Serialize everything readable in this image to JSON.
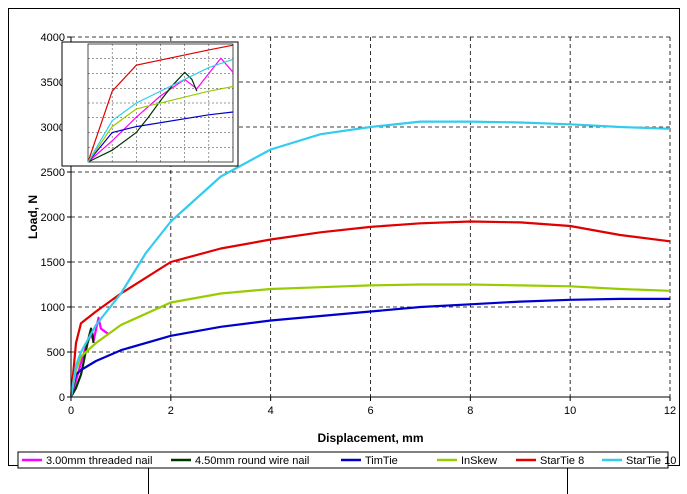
{
  "chart_data": {
    "type": "line",
    "title": "",
    "xlabel": "Displacement, mm",
    "ylabel": "Load, N",
    "xlim": [
      0,
      12
    ],
    "ylim": [
      0,
      4000
    ],
    "xticks": [
      "0",
      "2",
      "4",
      "6",
      "8",
      "10",
      "12"
    ],
    "yticks": [
      "0",
      "500",
      "1000",
      "1500",
      "2000",
      "2500",
      "3000",
      "3500",
      "4000"
    ],
    "grid": true,
    "legend_position": "bottom",
    "series": [
      {
        "name": "3.00mm threaded nail",
        "color": "#ff00ff",
        "x": [
          0,
          0.1,
          0.2,
          0.3,
          0.4,
          0.45,
          0.5,
          0.55,
          0.6,
          0.7,
          0.75
        ],
        "y": [
          0,
          180,
          380,
          560,
          700,
          620,
          750,
          880,
          760,
          720,
          700
        ]
      },
      {
        "name": "4.50mm round wire nail",
        "color": "#003300",
        "x": [
          0,
          0.1,
          0.2,
          0.25,
          0.3,
          0.35,
          0.4,
          0.43,
          0.45
        ],
        "y": [
          0,
          100,
          250,
          380,
          520,
          650,
          760,
          700,
          600
        ]
      },
      {
        "name": "TimTie",
        "color": "#0000cc",
        "x": [
          0,
          0.1,
          0.2,
          0.5,
          1,
          2,
          3,
          4,
          5,
          6,
          7,
          8,
          9,
          10,
          11,
          12
        ],
        "y": [
          0,
          250,
          300,
          400,
          520,
          680,
          780,
          850,
          900,
          950,
          1000,
          1030,
          1060,
          1080,
          1090,
          1090
        ]
      },
      {
        "name": "InSkew",
        "color": "#99cc00",
        "x": [
          0,
          0.1,
          0.2,
          0.5,
          1,
          2,
          3,
          4,
          5,
          6,
          7,
          8,
          9,
          10,
          11,
          12
        ],
        "y": [
          0,
          300,
          450,
          600,
          800,
          1050,
          1150,
          1200,
          1220,
          1240,
          1250,
          1250,
          1240,
          1230,
          1200,
          1180
        ]
      },
      {
        "name": "StarTie 8",
        "color": "#e00000",
        "x": [
          0,
          0.1,
          0.2,
          0.5,
          1,
          2,
          3,
          4,
          5,
          6,
          7,
          8,
          9,
          10,
          11,
          12
        ],
        "y": [
          0,
          600,
          820,
          950,
          1150,
          1500,
          1650,
          1750,
          1830,
          1890,
          1930,
          1950,
          1940,
          1900,
          1800,
          1730
        ]
      },
      {
        "name": "StarTie 10",
        "color": "#33ccee",
        "x": [
          0,
          0.1,
          0.2,
          0.5,
          1,
          1.5,
          2,
          3,
          4,
          5,
          6,
          7,
          8,
          9,
          10,
          11,
          12
        ],
        "y": [
          0,
          350,
          500,
          800,
          1150,
          1600,
          1950,
          2450,
          2750,
          2920,
          3000,
          3060,
          3060,
          3050,
          3030,
          3000,
          2980
        ]
      }
    ]
  }
}
